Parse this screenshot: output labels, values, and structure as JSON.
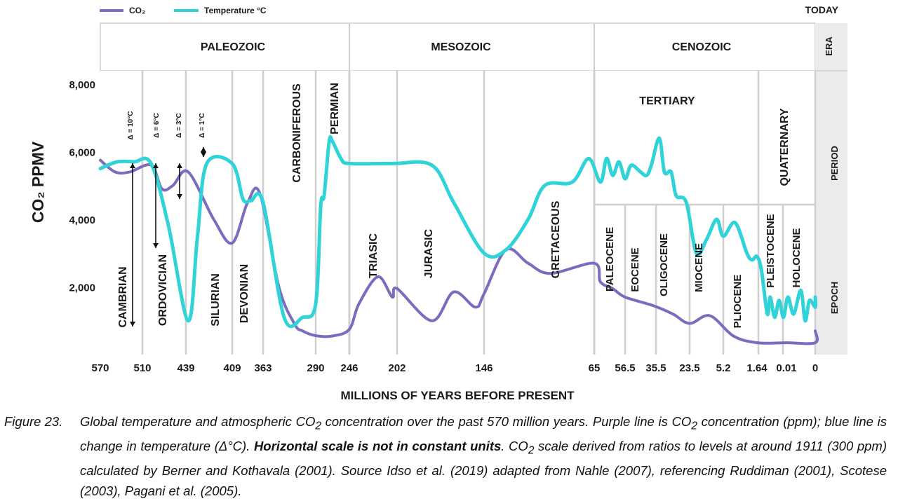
{
  "chart_data": {
    "type": "line",
    "today_label": "TODAY",
    "ylabel": "CO₂ PPMV",
    "xlabel": "MILLIONS OF YEARS BEFORE PRESENT",
    "y_ticks": [
      "8,000",
      "6,000",
      "4,000",
      "2,000"
    ],
    "x_ticks": [
      "570",
      "510",
      "439",
      "409",
      "363",
      "290",
      "246",
      "202",
      "146",
      "65",
      "56.5",
      "35.5",
      "23.5",
      "5.2",
      "1.64",
      "0.01",
      "0"
    ],
    "x_scale_note": "Horizontal scale is not in constant units",
    "ylim": [
      0,
      8000
    ],
    "grid": true,
    "legend_position": "top-left",
    "legend": [
      {
        "label": "CO₂",
        "color": "#7c6bbf"
      },
      {
        "label": "Temperature °C",
        "color": "#2fd3d8"
      }
    ],
    "row_labels": [
      "ERA",
      "PERIOD",
      "EPOCH"
    ],
    "eras": [
      "PALEOZOIC",
      "MESOZOIC",
      "CENOZOIC"
    ],
    "periods": [
      "CAMBRIAN",
      "ORDOVICIAN",
      "SILURIAN",
      "DEVONIAN",
      "CARBONIFEROUS",
      "PERMIAN",
      "TRIASIC",
      "JURASIC",
      "CRETACEOUS",
      "TERTIARY",
      "QUATERNARY"
    ],
    "epochs": [
      "PALEOCENE",
      "EOCENE",
      "OLIGOCENE",
      "MIOCENE",
      "PLIOCENE",
      "PLEISTOCENE",
      "HOLOCENE"
    ],
    "annotations": [
      "Δ = 10°C",
      "Δ = 6°C",
      "Δ = 3°C",
      "Δ = 1°C"
    ],
    "series": [
      {
        "name": "CO₂",
        "color": "#7c6bbf",
        "x_tick_index": [
          0,
          0.35,
          0.7,
          1.2,
          1.45,
          1.7,
          2.05,
          2.6,
          3.0,
          3.5,
          3.9,
          4.3,
          4.6,
          4.75,
          5.0,
          5.5,
          6.0,
          6.2,
          6.6,
          6.9,
          7.0,
          7.4,
          7.65,
          7.9,
          8.0,
          8.2,
          8.4,
          8.6,
          9.0,
          9.2,
          9.6,
          10.0,
          10.9,
          11.5,
          12.0,
          12.6,
          13.3,
          14.0,
          15.0,
          16.0,
          16.35
        ],
        "values": [
          5750,
          5400,
          5400,
          5600,
          4900,
          5000,
          5400,
          4000,
          3300,
          4500,
          4750,
          2000,
          900,
          700,
          560,
          550,
          750,
          1500,
          2300,
          1700,
          1950,
          1000,
          1850,
          1400,
          1800,
          3100,
          2700,
          2400,
          2700,
          2150,
          1950,
          1700,
          1450,
          1200,
          920,
          1150,
          550,
          350,
          350,
          350,
          700
        ]
      },
      {
        "name": "Temperature °C",
        "color": "#2fd3d8",
        "x_tick_index": [
          0,
          0.4,
          0.8,
          1.2,
          1.6,
          2.05,
          2.25,
          2.45,
          3.0,
          3.35,
          3.6,
          4.0,
          4.4,
          4.75,
          5.0,
          5.15,
          5.25,
          5.4,
          5.5,
          5.75,
          6.0,
          6.9,
          7.4,
          7.65,
          8.0,
          8.2,
          8.4,
          8.55,
          8.8,
          8.95,
          9.2,
          9.4,
          9.6,
          9.8,
          10.0,
          10.2,
          10.5,
          10.7,
          10.85,
          11.1,
          11.25,
          11.45,
          11.6,
          11.9,
          12.2,
          12.5,
          12.8,
          13.0,
          13.35,
          13.7,
          13.85,
          14.0,
          14.15,
          14.35,
          14.45,
          14.6,
          14.75,
          14.9,
          15.05,
          15.25,
          15.5,
          15.65,
          15.8,
          16.0,
          16.35
        ],
        "values": [
          5500,
          5700,
          5700,
          5650,
          3800,
          1000,
          3500,
          5650,
          5650,
          4600,
          4550,
          4500,
          1100,
          1100,
          1500,
          4400,
          4700,
          6300,
          6300,
          5800,
          5650,
          5650,
          5600,
          4500,
          3000,
          3100,
          4000,
          5000,
          5100,
          5800,
          5100,
          5800,
          5300,
          5700,
          5200,
          5600,
          5400,
          5300,
          5600,
          6400,
          5400,
          5400,
          4700,
          4500,
          3000,
          3400,
          4000,
          3500,
          3900,
          3000,
          2800,
          2900,
          2500,
          1200,
          1700,
          1100,
          1600,
          1100,
          1700,
          1200,
          1900,
          1000,
          1600,
          1400,
          1700
        ]
      }
    ]
  },
  "caption": {
    "label": "Figure 23.",
    "text_1": "Global temperature and atmospheric CO",
    "sub_2a": "2",
    "text_2": " concentration over the past 570 million years. Purple line is CO",
    "sub_2b": "2",
    "text_3": " concentration (ppm); blue line is change in temperature (Δ°C). ",
    "bold": "Horizontal scale is not in constant units",
    "text_4": ". CO",
    "sub_2c": "2",
    "text_5": " scale derived from ratios to levels at around 1911 (300 ppm) calculated by Berner and Kothavala (2001). Source Idso et al. (2019) adapted from Nahle (2007), referencing Ruddiman (2001), Scotese (2003), Pagani et al. (2005)."
  }
}
